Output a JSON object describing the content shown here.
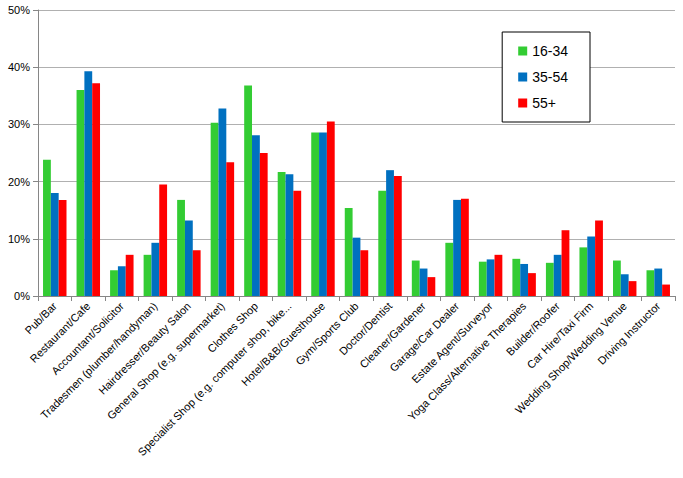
{
  "chart_data": {
    "type": "bar",
    "categories": [
      "Pub/Bar",
      "Restaurant/Cafe",
      "Accountant/Solicitor",
      "Tradesmen (plumber/handyman)",
      "Hairdresser/Beauty Salon",
      "General Shop (e.g. supermarket)",
      "Clothes Shop",
      "Specialist Shop (e.g. computer shop, bike...",
      "Hotel/B&B/Guesthouse",
      "Gym/Sports Club",
      "Doctor/Dentist",
      "Cleaner/Gardener",
      "Garage/Car Dealer",
      "Estate Agent/Surveyor",
      "Yoga Class/Alternative Therapies",
      "Builder/Roofer",
      "Car Hire/Taxi Firm",
      "Wedding Shop/Wedding Venue",
      "Driving Instructor"
    ],
    "series": [
      {
        "name": "16-34",
        "color": "#33cc33",
        "values": [
          23.8,
          36.0,
          4.5,
          7.2,
          16.8,
          30.3,
          36.8,
          21.7,
          28.6,
          15.4,
          18.4,
          6.2,
          9.3,
          6.0,
          6.5,
          5.8,
          8.5,
          6.2,
          4.5
        ]
      },
      {
        "name": "35-54",
        "color": "#0070c0",
        "values": [
          18.0,
          39.3,
          5.2,
          9.3,
          13.2,
          32.8,
          28.1,
          21.3,
          28.6,
          10.2,
          22.0,
          4.8,
          16.8,
          6.4,
          5.6,
          7.2,
          10.4,
          3.8,
          4.8
        ]
      },
      {
        "name": "55+",
        "color": "#ff0000",
        "values": [
          16.8,
          37.2,
          7.2,
          19.5,
          8.0,
          23.4,
          25.0,
          18.4,
          30.5,
          8.0,
          21.0,
          3.3,
          17.0,
          7.2,
          4.0,
          11.5,
          13.2,
          2.6,
          2.0
        ]
      }
    ],
    "ylim": [
      0,
      50
    ],
    "yticks": [
      {
        "value": 0,
        "label": "0%"
      },
      {
        "value": 10,
        "label": "10%"
      },
      {
        "value": 20,
        "label": "20%"
      },
      {
        "value": 30,
        "label": "30%"
      },
      {
        "value": 40,
        "label": "40%"
      },
      {
        "value": 50,
        "label": "50%"
      }
    ],
    "grid": true,
    "legend": "top-right"
  }
}
